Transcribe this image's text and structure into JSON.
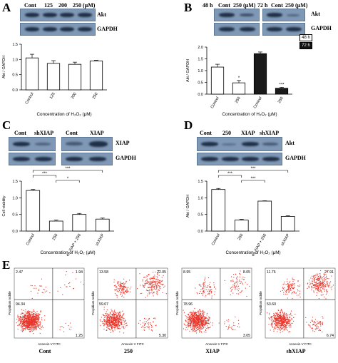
{
  "panels": {
    "A": {
      "letter": "A",
      "lanes": [
        "Cont",
        "125",
        "200",
        "250 (μM)"
      ],
      "blots": [
        "Akt",
        "GAPDH"
      ],
      "chart_data": {
        "type": "bar",
        "categories": [
          "Control",
          "125",
          "200",
          "250"
        ],
        "values": [
          1.05,
          0.87,
          0.84,
          0.95
        ],
        "errors": [
          0.12,
          0.09,
          0.07,
          0.02
        ],
        "ylabel": "Akt / GAPDH",
        "xlabel": "Concentration of H₂O₂ (μM)",
        "ylim": [
          0,
          1.5
        ],
        "yticks": [
          "0.0",
          "0.5",
          "1.0",
          "1.5"
        ],
        "fills": [
          "#ffffff",
          "#ffffff",
          "#ffffff",
          "#ffffff"
        ]
      }
    },
    "B": {
      "letter": "B",
      "lanes": [
        "48 h",
        "Cont",
        "250 (μM)",
        "72 h",
        "Cont",
        "250 (μM)"
      ],
      "blots": [
        "Akt",
        "GAPDH"
      ],
      "legend": [
        "48 h",
        "72 h"
      ],
      "chart_data": {
        "type": "bar",
        "categories": [
          "Control",
          "250",
          "Control",
          "250"
        ],
        "values": [
          1.15,
          0.48,
          1.72,
          0.25
        ],
        "errors": [
          0.12,
          0.1,
          0.07,
          0.04
        ],
        "ylabel": "Akt / GAPDH",
        "xlabel": "Concentration of H₂O₂ (μM)",
        "ylim": [
          0,
          2.0
        ],
        "yticks": [
          "0.0",
          "0.5",
          "1.0",
          "1.5",
          "2.0"
        ],
        "annotations": [
          "",
          "*",
          "",
          "***"
        ],
        "fills": [
          "#ffffff",
          "#ffffff",
          "#1a1a1a",
          "#1a1a1a"
        ]
      }
    },
    "C": {
      "letter": "C",
      "lanes": [
        "Cont",
        "shXIAP",
        "Cont",
        "XIAP"
      ],
      "blots": [
        "XIAP",
        "GAPDH"
      ],
      "significance": [
        "***",
        "*",
        "***"
      ],
      "chart_data": {
        "type": "bar",
        "categories": [
          "Control",
          "250",
          "ex XIAP + 250",
          "shXIAP"
        ],
        "values": [
          1.22,
          0.3,
          0.5,
          0.36
        ],
        "errors": [
          0.03,
          0.03,
          0.03,
          0.03
        ],
        "ylabel": "Cell viability",
        "xlabel": "Concentration of H₂O₂ (μM)",
        "ylim": [
          0,
          1.5
        ],
        "yticks": [
          "0.0",
          "0.5",
          "1.0",
          "1.5"
        ],
        "fills": [
          "#ffffff",
          "#ffffff",
          "#ffffff",
          "#ffffff"
        ]
      }
    },
    "D": {
      "letter": "D",
      "lanes": [
        "Cont",
        "250",
        "XIAP",
        "shXIAP"
      ],
      "blots": [
        "Akt",
        "GAPDH"
      ],
      "significance": [
        "***",
        "***",
        "***"
      ],
      "chart_data": {
        "type": "bar",
        "categories": [
          "Control",
          "250",
          "ex XIAP + 250",
          "shXIAP"
        ],
        "values": [
          1.25,
          0.33,
          0.9,
          0.44
        ],
        "errors": [
          0.03,
          0.02,
          0.01,
          0.02
        ],
        "ylabel": "Akt / GAPDH",
        "xlabel": "Concentration of H₂O₂ (μM)",
        "ylim": [
          0,
          1.5
        ],
        "yticks": [
          "0.0",
          "0.5",
          "1.0",
          "1.5"
        ],
        "fills": [
          "#ffffff",
          "#ffffff",
          "#ffffff",
          "#ffffff"
        ]
      }
    },
    "E": {
      "letter": "E",
      "xaxis": "Annexin V FITC",
      "yaxis": "Propidium Iodide",
      "plots": [
        {
          "label": "Cont",
          "q": [
            "2.47",
            "1.94",
            "94.34",
            "1.25"
          ]
        },
        {
          "label": "250",
          "q": [
            "13.58",
            "22.05",
            "59.07",
            "5.30"
          ]
        },
        {
          "label": "XIAP",
          "q": [
            "8.95",
            "8.05",
            "78.96",
            "3.05"
          ]
        },
        {
          "label": "shXIAP",
          "q": [
            "11.76",
            "27.91",
            "53.60",
            "6.74"
          ]
        }
      ],
      "dot_color": "#e8362b"
    }
  }
}
